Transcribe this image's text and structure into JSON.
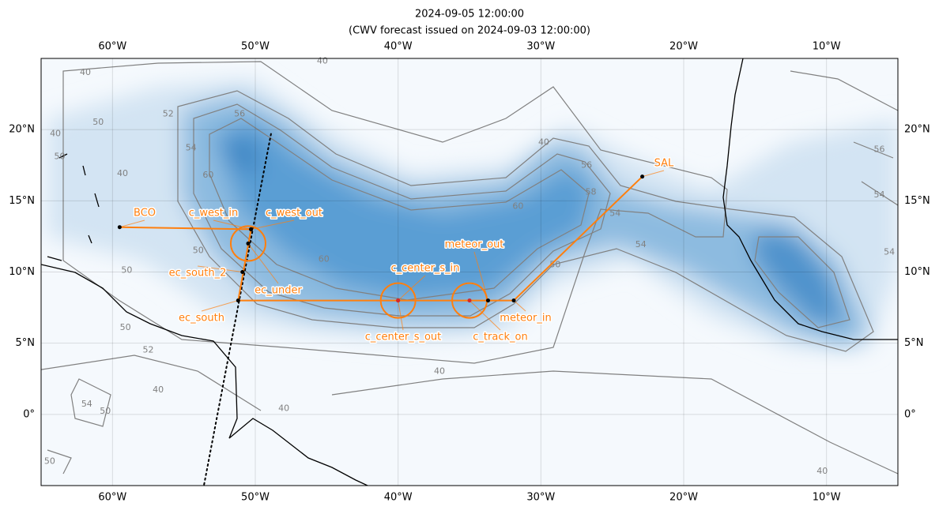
{
  "title": "2024-09-05 12:00:00",
  "subtitle": "(CWV forecast issued on 2024-09-03 12:00:00)",
  "lon_range": [
    -65,
    -5
  ],
  "lat_range": [
    -5,
    25
  ],
  "lon_ticks": [
    {
      "value": -60,
      "label": "60°W"
    },
    {
      "value": -50,
      "label": "50°W"
    },
    {
      "value": -40,
      "label": "40°W"
    },
    {
      "value": -30,
      "label": "30°W"
    },
    {
      "value": -20,
      "label": "20°W"
    },
    {
      "value": -10,
      "label": "10°W"
    }
  ],
  "lat_ticks": [
    {
      "value": 20,
      "label": "20°N"
    },
    {
      "value": 15,
      "label": "15°N"
    },
    {
      "value": 10,
      "label": "10°N"
    },
    {
      "value": 5,
      "label": "5°N"
    },
    {
      "value": 0,
      "label": "0°"
    }
  ],
  "grid": true,
  "track_color": "#ff7f0e",
  "flight_track": {
    "lon": [
      -59.5,
      -50.3,
      -51.2,
      -31.9,
      -22.9
    ],
    "lat": [
      13.15,
      13.0,
      8.0,
      8.0,
      16.7
    ]
  },
  "satellite_track": {
    "lon": [
      -48.9,
      -53.6
    ],
    "lat": [
      19.7,
      -5
    ]
  },
  "circles": [
    {
      "lon": -50.5,
      "lat": 12.0
    },
    {
      "lon": -40.0,
      "lat": 8.0
    },
    {
      "lon": -35.0,
      "lat": 8.0
    }
  ],
  "waypoints": [
    {
      "name": "BCO",
      "lon": -59.5,
      "lat": 13.15,
      "color": "#000000"
    },
    {
      "name": "c_west_in",
      "lon": -50.3,
      "lat": 13.0,
      "color": "#000000"
    },
    {
      "name": "c_west_out",
      "lon": -50.3,
      "lat": 13.0,
      "color": "#000000"
    },
    {
      "name": "ec_under",
      "lon": -50.5,
      "lat": 12.0,
      "color": "#000000"
    },
    {
      "name": "ec_south_2",
      "lon": -50.9,
      "lat": 10.0,
      "color": "#000000"
    },
    {
      "name": "ec_south",
      "lon": -51.2,
      "lat": 8.0,
      "color": "#000000"
    },
    {
      "name": "c_center_s_out",
      "lon": -40.0,
      "lat": 8.0,
      "color": "#d62728"
    },
    {
      "name": "c_center_s_in",
      "lon": -40.0,
      "lat": 8.0,
      "color": "#d62728"
    },
    {
      "name": "c_track_on",
      "lon": -35.0,
      "lat": 8.0,
      "color": "#d62728"
    },
    {
      "name": "meteor_out",
      "lon": -33.7,
      "lat": 8.0,
      "color": "#000000"
    },
    {
      "name": "meteor_in",
      "lon": -31.9,
      "lat": 8.0,
      "color": "#000000"
    },
    {
      "name": "SAL",
      "lon": -22.9,
      "lat": 16.7,
      "color": "#000000"
    }
  ],
  "contour_labels": [
    {
      "value": 40,
      "lon": -61.9,
      "lat": 24.0
    },
    {
      "value": 50,
      "lon": -61.0,
      "lat": 20.5
    },
    {
      "value": 40,
      "lon": -64.0,
      "lat": 19.7
    },
    {
      "value": 50,
      "lon": -63.7,
      "lat": 18.1
    },
    {
      "value": 40,
      "lon": -59.3,
      "lat": 16.9
    },
    {
      "value": 52,
      "lon": -56.1,
      "lat": 21.1
    },
    {
      "value": 54,
      "lon": -54.5,
      "lat": 18.7
    },
    {
      "value": 56,
      "lon": -51.1,
      "lat": 21.1
    },
    {
      "value": 60,
      "lon": -53.3,
      "lat": 16.8
    },
    {
      "value": 50,
      "lon": -54.0,
      "lat": 11.5
    },
    {
      "value": 60,
      "lon": -45.2,
      "lat": 10.9
    },
    {
      "value": 40,
      "lon": -45.3,
      "lat": 24.8
    },
    {
      "value": 50,
      "lon": -59.0,
      "lat": 10.1
    },
    {
      "value": 50,
      "lon": -59.1,
      "lat": 6.1
    },
    {
      "value": 52,
      "lon": -57.5,
      "lat": 4.5
    },
    {
      "value": 40,
      "lon": -29.8,
      "lat": 19.1
    },
    {
      "value": 56,
      "lon": -26.8,
      "lat": 17.5
    },
    {
      "value": 58,
      "lon": -26.5,
      "lat": 15.6
    },
    {
      "value": 60,
      "lon": -31.6,
      "lat": 14.6
    },
    {
      "value": 54,
      "lon": -24.8,
      "lat": 14.1
    },
    {
      "value": 54,
      "lon": -23.0,
      "lat": 11.9
    },
    {
      "value": 50,
      "lon": -29.0,
      "lat": 10.5
    },
    {
      "value": 40,
      "lon": -37.1,
      "lat": 3.0
    },
    {
      "value": 40,
      "lon": -48.0,
      "lat": 0.4
    },
    {
      "value": 40,
      "lon": -56.8,
      "lat": 1.7
    },
    {
      "value": 54,
      "lon": -61.8,
      "lat": 0.7
    },
    {
      "value": 50,
      "lon": -60.5,
      "lat": 0.2
    },
    {
      "value": 50,
      "lon": -64.4,
      "lat": -3.3
    },
    {
      "value": 40,
      "lon": -10.3,
      "lat": -4.0
    },
    {
      "value": 56,
      "lon": -6.3,
      "lat": 18.6
    },
    {
      "value": 54,
      "lon": -6.3,
      "lat": 15.4
    },
    {
      "value": 54,
      "lon": -5.6,
      "lat": 11.4
    }
  ]
}
